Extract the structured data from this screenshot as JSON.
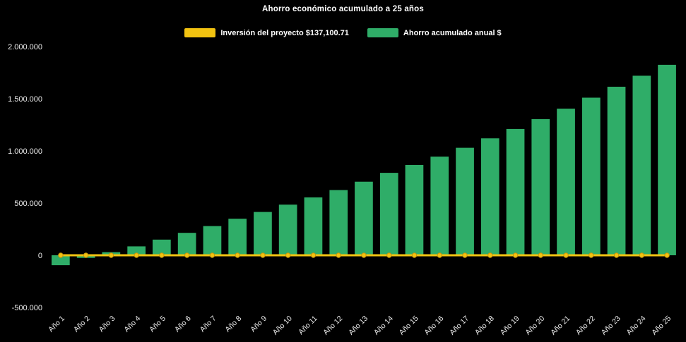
{
  "chart_data": {
    "type": "bar",
    "title": "Ahorro económico acumulado a 25 años",
    "categories": [
      "Año 1",
      "Año 2",
      "Año 3",
      "Año 4",
      "Año 5",
      "Año 6",
      "Año 7",
      "Año 8",
      "Año 9",
      "Año 10",
      "Año 11",
      "Año 12",
      "Año 13",
      "Año 14",
      "Año 15",
      "Año 16",
      "Año 17",
      "Año 18",
      "Año 19",
      "Año 20",
      "Año 21",
      "Año 22",
      "Año 23",
      "Año 24",
      "Año 25"
    ],
    "series": [
      {
        "name": "Inversión del proyecto $137,100.71",
        "type": "line",
        "color": "#f2c311",
        "values": [
          0,
          0,
          0,
          0,
          0,
          0,
          0,
          0,
          0,
          0,
          0,
          0,
          0,
          0,
          0,
          0,
          0,
          0,
          0,
          0,
          0,
          0,
          0,
          0,
          0
        ]
      },
      {
        "name": "Ahorro acumulado anual $",
        "type": "bar",
        "color": "#2fad68",
        "values": [
          -95000,
          -25000,
          30000,
          85000,
          150000,
          215000,
          280000,
          350000,
          415000,
          485000,
          555000,
          625000,
          705000,
          790000,
          865000,
          945000,
          1030000,
          1120000,
          1210000,
          1305000,
          1405000,
          1510000,
          1615000,
          1720000,
          1825000
        ]
      }
    ],
    "investment_value_label": "$137,100.71",
    "ylim": [
      -500000,
      2000000
    ],
    "yticks": [
      {
        "value": 2000000,
        "label": "2.000.000"
      },
      {
        "value": 1500000,
        "label": "1.500.000"
      },
      {
        "value": 1000000,
        "label": "1.000.000"
      },
      {
        "value": 500000,
        "label": "500.000"
      },
      {
        "value": 0,
        "label": "0"
      },
      {
        "value": -500000,
        "label": "-500.000"
      }
    ],
    "legend_position": "top",
    "grid": false,
    "background": "#000000",
    "text_color": "#ffffff"
  }
}
